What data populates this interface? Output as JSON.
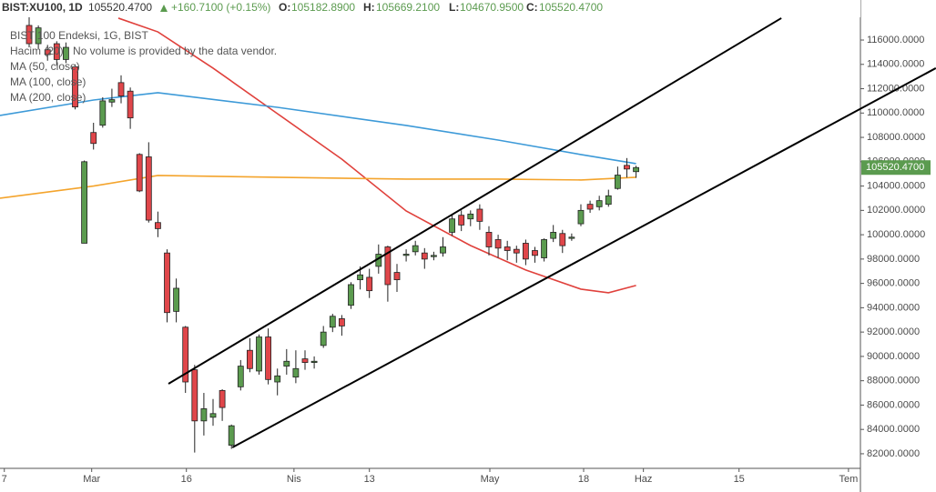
{
  "header": {
    "symbol": "BIST:XU100, 1D",
    "last": "105520.4700",
    "change": "+160.7100 (+0.15%)",
    "ohlc": [
      {
        "key": "O:",
        "value": "105182.8900"
      },
      {
        "key": "H:",
        "value": "105669.2100"
      },
      {
        "key": "L:",
        "value": "104670.9500"
      },
      {
        "key": "C:",
        "value": "105520.4700"
      }
    ]
  },
  "legend": {
    "title": "BIST 100 Endeksi, 1G, BIST",
    "volume": "Hacim (20)",
    "volume_note": "No volume is provided by the data vendor."
  },
  "chart_data": {
    "type": "candlestick",
    "up_color": "#5b9b4f",
    "down_color": "#e0464a",
    "grid": false,
    "xlim": [
      -3.17,
      90.4
    ],
    "xticks": [
      {
        "value": -2.7,
        "label": "7"
      },
      {
        "value": 6.8,
        "label": "Mar"
      },
      {
        "value": 17.1,
        "label": "16"
      },
      {
        "value": 28.8,
        "label": "Nis"
      },
      {
        "value": 37.0,
        "label": "13"
      },
      {
        "value": 50.1,
        "label": "May"
      },
      {
        "value": 60.3,
        "label": "18"
      },
      {
        "value": 66.8,
        "label": "Haz"
      },
      {
        "value": 77.2,
        "label": "15"
      },
      {
        "value": 89.1,
        "label": "Tem"
      }
    ],
    "ylim": [
      80800,
      119290
    ],
    "yticks": [
      {
        "value": 82000,
        "label": "82000.0000"
      },
      {
        "value": 84000,
        "label": "84000.0000"
      },
      {
        "value": 86000,
        "label": "86000.0000"
      },
      {
        "value": 88000,
        "label": "88000.0000"
      },
      {
        "value": 90000,
        "label": "90000.0000"
      },
      {
        "value": 92000,
        "label": "92000.0000"
      },
      {
        "value": 94000,
        "label": "94000.0000"
      },
      {
        "value": 96000,
        "label": "96000.0000"
      },
      {
        "value": 98000,
        "label": "98000.0000"
      },
      {
        "value": 100000,
        "label": "100000.0000"
      },
      {
        "value": 102000,
        "label": "102000.0000"
      },
      {
        "value": 104000,
        "label": "104000.0000"
      },
      {
        "value": 106000,
        "label": "106000.0000"
      },
      {
        "value": 108000,
        "label": "108000.0000"
      },
      {
        "value": 110000,
        "label": "110000.0000"
      },
      {
        "value": 112000,
        "label": "112000.0000"
      },
      {
        "value": 114000,
        "label": "114000.0000"
      },
      {
        "value": 116000,
        "label": "116000.0000"
      }
    ],
    "last_price": {
      "value": 105520.47,
      "label": "105520.4700",
      "color": "#5b9b4f"
    },
    "open": [
      117200,
      115700,
      115200,
      115700,
      114400,
      113800,
      99300,
      108400,
      109000,
      110900,
      112500,
      111800,
      106600,
      106400,
      101000,
      98500,
      93700,
      92400,
      88900,
      84700,
      85000,
      87200,
      82700,
      87500,
      90500,
      88800,
      91600,
      87900,
      89200,
      88300,
      89800,
      89500,
      90900,
      92400,
      93100,
      94200,
      96300,
      96500,
      97400,
      99000,
      96900,
      98300,
      98600,
      98500,
      98200,
      98500,
      100200,
      101600,
      101300,
      102100,
      100200,
      99600,
      99000,
      98800,
      99300,
      98700,
      98100,
      99700,
      100100,
      99700,
      100900,
      102500,
      102300,
      102500,
      103800,
      105700,
      105182.89
    ],
    "high": [
      117900,
      117200,
      115600,
      115900,
      115800,
      114000,
      106100,
      109200,
      111300,
      112000,
      113100,
      112100,
      106700,
      107600,
      101900,
      98800,
      96400,
      92500,
      89300,
      87000,
      86500,
      87300,
      84400,
      89700,
      91500,
      91800,
      92300,
      89000,
      90600,
      90500,
      90500,
      90000,
      92500,
      93500,
      93400,
      96100,
      97400,
      97200,
      99200,
      99100,
      97600,
      98800,
      99500,
      98900,
      98600,
      99800,
      101700,
      102000,
      102000,
      102500,
      100700,
      100000,
      99500,
      99100,
      99600,
      99000,
      99700,
      100800,
      100400,
      100100,
      102500,
      102800,
      103200,
      103700,
      105600,
      106300,
      105669.21
    ],
    "low": [
      115400,
      115300,
      114300,
      113900,
      114100,
      110300,
      99300,
      107000,
      108800,
      110500,
      110800,
      108700,
      103500,
      101000,
      99800,
      92800,
      92800,
      87000,
      82100,
      83500,
      84300,
      84700,
      82400,
      87200,
      88700,
      88500,
      87700,
      86800,
      88500,
      87800,
      88900,
      89000,
      90700,
      92000,
      91700,
      93900,
      95500,
      94800,
      96800,
      94500,
      95300,
      97800,
      98300,
      97200,
      97900,
      98200,
      99900,
      100300,
      100700,
      100400,
      98300,
      98100,
      97900,
      97700,
      97500,
      97700,
      97800,
      99400,
      98500,
      99500,
      100700,
      101800,
      102000,
      102300,
      103700,
      104700,
      104670.95
    ],
    "close": [
      115700,
      117000,
      114800,
      114400,
      115400,
      110500,
      106000,
      107500,
      111000,
      111100,
      111400,
      109600,
      103600,
      101200,
      100500,
      93600,
      95600,
      87900,
      84700,
      85700,
      85300,
      85800,
      84300,
      89200,
      89000,
      91600,
      88100,
      88400,
      89600,
      89000,
      89500,
      89600,
      92000,
      93300,
      92500,
      95900,
      96700,
      95400,
      98400,
      95900,
      96300,
      98400,
      99100,
      98000,
      98300,
      99000,
      101300,
      100800,
      101700,
      101100,
      99000,
      98900,
      98700,
      98500,
      98000,
      98300,
      99600,
      100200,
      99100,
      99800,
      102000,
      102100,
      102800,
      103200,
      104900,
      105400,
      105520.47
    ],
    "series": [
      {
        "name": "MA (50, close)",
        "color": "#e0413c",
        "x": [
          9.7,
          14,
          20,
          27,
          34,
          41,
          48,
          54,
          60,
          63,
          66
        ],
        "values": [
          117800,
          116670,
          113690,
          109950,
          106210,
          101950,
          99110,
          97100,
          95530,
          95230,
          95830
        ]
      },
      {
        "name": "MA (100, close)",
        "color": "#3d9ad8",
        "x": [
          -3.17,
          7,
          14,
          27,
          41,
          51,
          60,
          66
        ],
        "values": [
          109800,
          111070,
          111670,
          110470,
          108980,
          107780,
          106590,
          105840
        ]
      },
      {
        "name": "MA (200, close)",
        "color": "#f4a42c",
        "x": [
          -3.17,
          7,
          14,
          27,
          41,
          51,
          60,
          66
        ],
        "values": [
          103000,
          104000,
          104870,
          104720,
          104570,
          104570,
          104500,
          104720
        ]
      }
    ],
    "trend_lines": [
      {
        "color": "#000000",
        "x": [
          15.15,
          81.8
        ],
        "values": [
          87750,
          117800
        ]
      },
      {
        "color": "#000000",
        "x": [
          22.1,
          98.6
        ],
        "values": [
          82520,
          113690
        ]
      }
    ]
  }
}
